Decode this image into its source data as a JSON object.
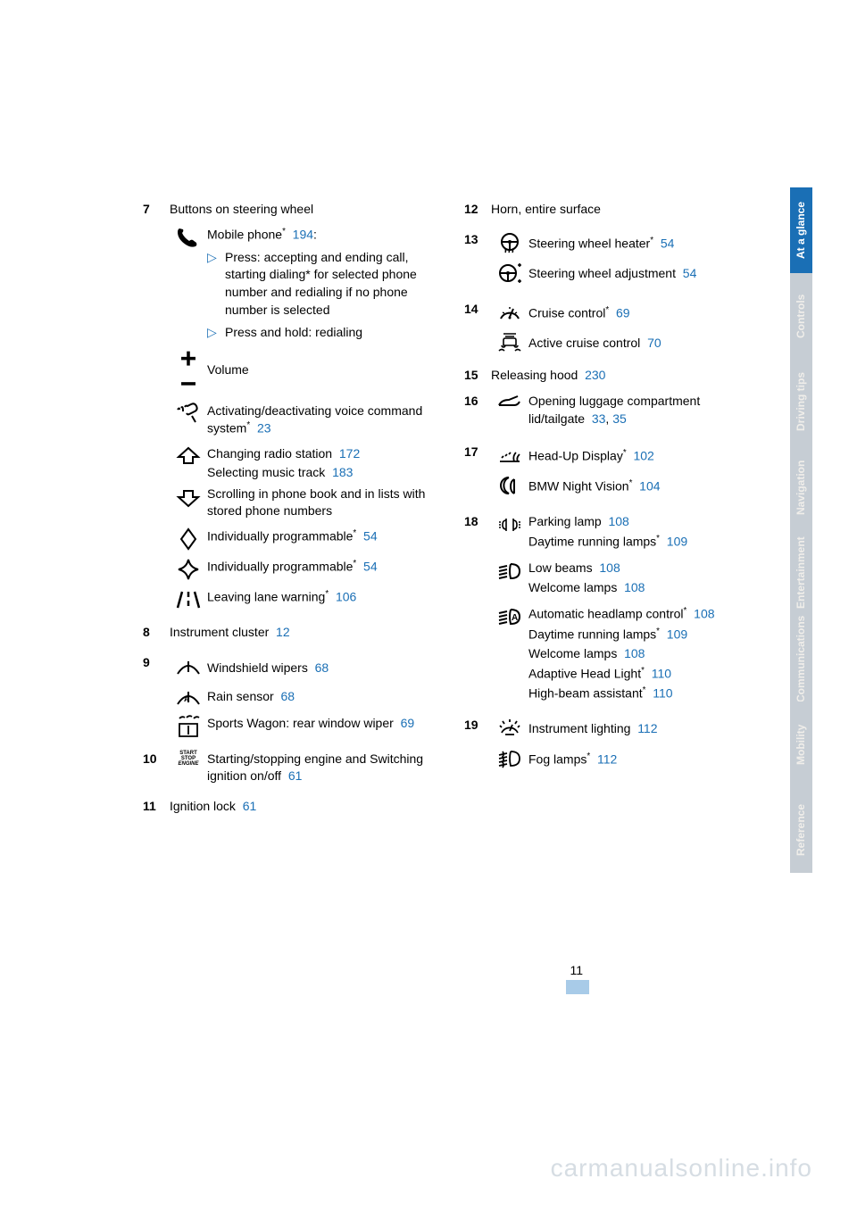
{
  "pageNumber": "11",
  "watermark": "carmanualsonline.info",
  "tabs": [
    {
      "label": "At a glance",
      "active": true
    },
    {
      "label": "Controls",
      "active": false
    },
    {
      "label": "Driving tips",
      "active": false
    },
    {
      "label": "Navigation",
      "active": false
    },
    {
      "label": "Entertainment",
      "active": false
    },
    {
      "label": "Communications",
      "active": false
    },
    {
      "label": "Mobility",
      "active": false
    },
    {
      "label": "Reference",
      "active": false
    }
  ],
  "left": {
    "i7": {
      "num": "7",
      "text": "Buttons on steering wheel"
    },
    "i7a": {
      "text": "Mobile phone",
      "ref": "194",
      "colon": ":"
    },
    "i7a_b1": "Press: accepting and ending call, starting dialing* for selected phone number and redialing if no phone number is selected",
    "i7a_b2": "Press and hold: redialing",
    "i7b": {
      "text": "Volume"
    },
    "i7c": {
      "text": "Activating/deactivating voice command system",
      "ref": "23"
    },
    "i7d_l1": {
      "text": "Changing radio station",
      "ref": "172"
    },
    "i7d_l2": {
      "text": "Selecting music track",
      "ref": "183"
    },
    "i7d_l3": "Scrolling in phone book and in lists with stored phone numbers",
    "i7e": {
      "text": "Individually programmable",
      "ref": "54"
    },
    "i7f": {
      "text": "Individually programmable",
      "ref": "54"
    },
    "i7g": {
      "text": "Leaving lane warning",
      "ref": "106"
    },
    "i8": {
      "num": "8",
      "text": "Instrument cluster",
      "ref": "12"
    },
    "i9": {
      "num": "9"
    },
    "i9a": {
      "text": "Windshield wipers",
      "ref": "68"
    },
    "i9b": {
      "text": "Rain sensor",
      "ref": "68"
    },
    "i9c": {
      "text": "Sports Wagon: rear window wiper",
      "ref": "69"
    },
    "i10": {
      "num": "10",
      "text": "Starting/stopping engine and Switching ignition on/off",
      "ref": "61"
    },
    "i11": {
      "num": "11",
      "text": "Ignition lock",
      "ref": "61"
    }
  },
  "right": {
    "i12": {
      "num": "12",
      "text": "Horn, entire surface"
    },
    "i13": {
      "num": "13"
    },
    "i13a": {
      "text": "Steering wheel heater",
      "ref": "54"
    },
    "i13b": {
      "text": "Steering wheel adjustment",
      "ref": "54"
    },
    "i14": {
      "num": "14"
    },
    "i14a": {
      "text": "Cruise control",
      "ref": "69"
    },
    "i14b": {
      "text": "Active cruise control",
      "ref": "70"
    },
    "i15": {
      "num": "15",
      "text": "Releasing hood",
      "ref": "230"
    },
    "i16": {
      "num": "16",
      "text": "Opening luggage compartment lid/tailgate",
      "ref": "33",
      "ref2": "35"
    },
    "i17": {
      "num": "17"
    },
    "i17a": {
      "text": "Head-Up Display",
      "ref": "102"
    },
    "i17b": {
      "text": "BMW Night Vision",
      "ref": "104"
    },
    "i18": {
      "num": "18"
    },
    "i18a_l1": {
      "text": "Parking lamp",
      "ref": "108"
    },
    "i18a_l2": {
      "text": "Daytime running lamps",
      "ref": "109"
    },
    "i18b_l1": {
      "text": "Low beams",
      "ref": "108"
    },
    "i18b_l2": {
      "text": "Welcome lamps",
      "ref": "108"
    },
    "i18c_l1": {
      "text": "Automatic headlamp control",
      "ref": "108"
    },
    "i18c_l2": {
      "text": "Daytime running lamps",
      "ref": "109"
    },
    "i18c_l3": {
      "text": "Welcome lamps",
      "ref": "108"
    },
    "i18c_l4": {
      "text": "Adaptive Head Light",
      "ref": "110"
    },
    "i18c_l5": {
      "text": "High-beam assistant",
      "ref": "110"
    },
    "i19": {
      "num": "19"
    },
    "i19a": {
      "text": "Instrument lighting",
      "ref": "112"
    },
    "i19b": {
      "text": "Fog lamps",
      "ref": "112"
    }
  }
}
